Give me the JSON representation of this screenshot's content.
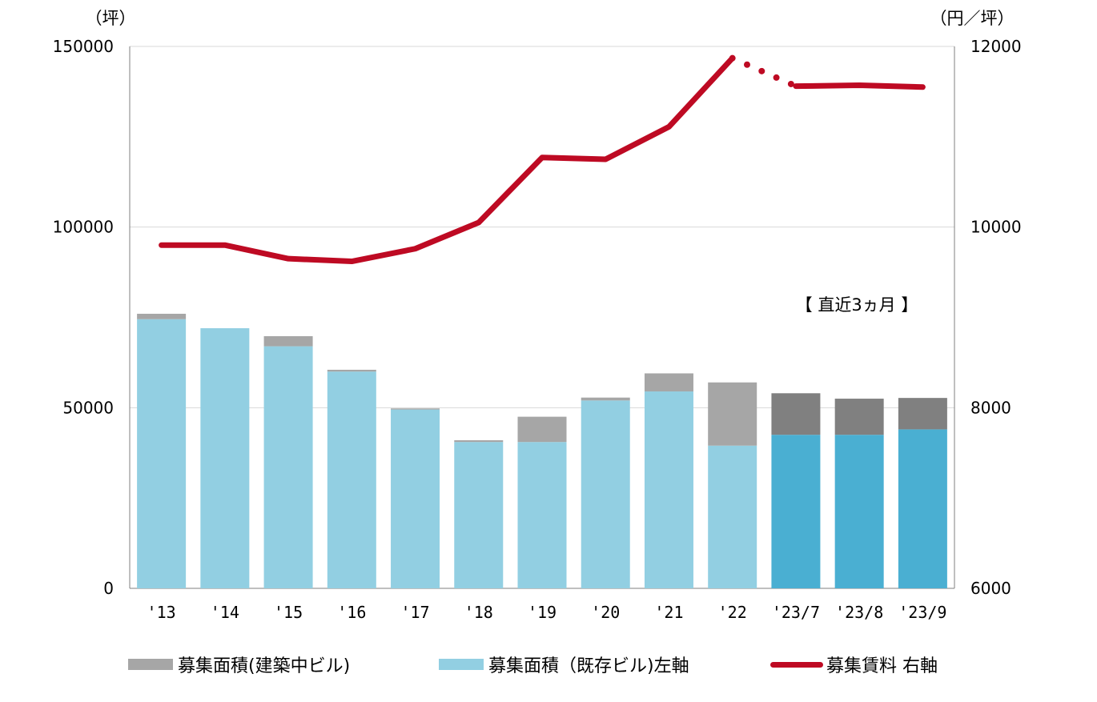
{
  "chart_data": {
    "type": "bar+line",
    "title": "",
    "categories": [
      "'13",
      "'14",
      "'15",
      "'16",
      "'17",
      "'18",
      "'19",
      "'20",
      "'21",
      "'22",
      "'23/7",
      "'23/8",
      "'23/9"
    ],
    "left_axis": {
      "unit": "（坪）",
      "ylim": [
        0,
        150000
      ],
      "ticks": [
        "0",
        "50000",
        "100000",
        "150000"
      ]
    },
    "right_axis": {
      "unit": "（円／坪）",
      "ylim": [
        6000,
        12000
      ],
      "ticks": [
        "6000",
        "8000",
        "10000",
        "12000"
      ]
    },
    "series": [
      {
        "name": "募集面積(既存ビル)左軸",
        "kind": "bar-stack-bottom",
        "axis": "left",
        "values": [
          74500,
          72000,
          67000,
          60000,
          49500,
          40500,
          40500,
          52000,
          54500,
          39500,
          42500,
          42500,
          44000
        ]
      },
      {
        "name": "募集面積(建築中ビル)",
        "kind": "bar-stack-top",
        "axis": "left",
        "values": [
          1500,
          0,
          2800,
          500,
          300,
          500,
          7000,
          800,
          5000,
          17500,
          11500,
          10000,
          8700
        ]
      },
      {
        "name": "募集賃料 右軸",
        "kind": "line",
        "axis": "right",
        "values": [
          9800,
          9800,
          9650,
          9620,
          9760,
          10050,
          10770,
          10750,
          11110,
          11870,
          11560,
          11570,
          11550
        ],
        "dotted_segment": [
          9,
          10
        ]
      }
    ],
    "annotation": "【 直近3ヵ月 】",
    "highlight_from_index": 10,
    "colors": {
      "existing": "#92CFE2",
      "existing_recent": "#4AAFD2",
      "construction": "#A6A6A6",
      "construction_recent": "#808080",
      "line": "#BE0A23",
      "gridline": "#D9D9D9",
      "axis": "#7F7F7F"
    },
    "grid": true,
    "legend_position": "bottom"
  },
  "legend": {
    "construction": "募集面積(建築中ビル)",
    "existing": "募集面積（既存ビル)左軸",
    "rent": "募集賃料 右軸"
  }
}
